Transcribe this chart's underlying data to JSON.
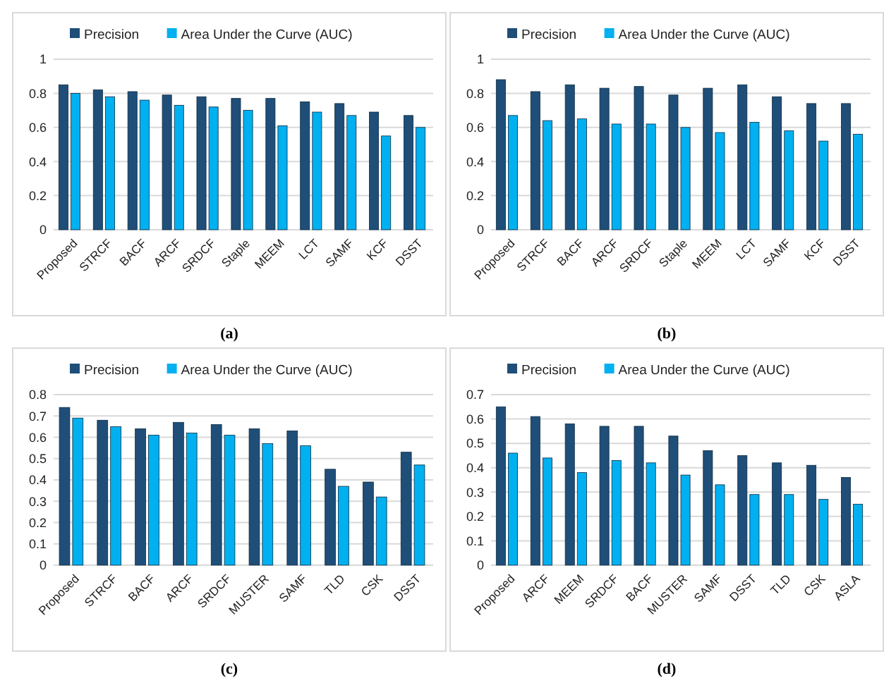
{
  "chart_data": [
    {
      "type": "bar",
      "title": "(a)",
      "categories": [
        "Proposed",
        "STRCF",
        "BACF",
        "ARCF",
        "SRDCF",
        "Staple",
        "MEEM",
        "LCT",
        "SAMF",
        "KCF",
        "DSST"
      ],
      "series": [
        {
          "name": "Precision",
          "color": "#1f4e79",
          "values": [
            0.85,
            0.82,
            0.81,
            0.79,
            0.78,
            0.77,
            0.77,
            0.75,
            0.74,
            0.69,
            0.67
          ]
        },
        {
          "name": "Area Under the Curve (AUC)",
          "color": "#00b0f0",
          "values": [
            0.8,
            0.78,
            0.76,
            0.73,
            0.72,
            0.7,
            0.61,
            0.69,
            0.67,
            0.55,
            0.6
          ]
        }
      ],
      "ylim": [
        0,
        1
      ],
      "yticks": [
        0,
        0.2,
        0.4,
        0.6,
        0.8,
        1
      ],
      "grid": "y",
      "legend": "top"
    },
    {
      "type": "bar",
      "title": "(b)",
      "categories": [
        "Proposed",
        "STRCF",
        "BACF",
        "ARCF",
        "SRDCF",
        "Staple",
        "MEEM",
        "LCT",
        "SAMF",
        "KCF",
        "DSST"
      ],
      "series": [
        {
          "name": "Precision",
          "color": "#1f4e79",
          "values": [
            0.88,
            0.81,
            0.85,
            0.83,
            0.84,
            0.79,
            0.83,
            0.85,
            0.78,
            0.74,
            0.74
          ]
        },
        {
          "name": "Area Under the Curve (AUC)",
          "color": "#00b0f0",
          "values": [
            0.67,
            0.64,
            0.65,
            0.62,
            0.62,
            0.6,
            0.57,
            0.63,
            0.58,
            0.52,
            0.56
          ]
        }
      ],
      "ylim": [
        0,
        1
      ],
      "yticks": [
        0,
        0.2,
        0.4,
        0.6,
        0.8,
        1
      ],
      "grid": "y",
      "legend": "top"
    },
    {
      "type": "bar",
      "title": "(c)",
      "categories": [
        "Proposed",
        "STRCF",
        "BACF",
        "ARCF",
        "SRDCF",
        "MUSTER",
        "SAMF",
        "TLD",
        "CSK",
        "DSST"
      ],
      "series": [
        {
          "name": "Precision",
          "color": "#1f4e79",
          "values": [
            0.74,
            0.68,
            0.64,
            0.67,
            0.66,
            0.64,
            0.63,
            0.45,
            0.39,
            0.53
          ]
        },
        {
          "name": "Area Under the Curve (AUC)",
          "color": "#00b0f0",
          "values": [
            0.69,
            0.65,
            0.61,
            0.62,
            0.61,
            0.57,
            0.56,
            0.37,
            0.32,
            0.47
          ]
        }
      ],
      "ylim": [
        0,
        0.8
      ],
      "yticks": [
        0,
        0.1,
        0.2,
        0.3,
        0.4,
        0.5,
        0.6,
        0.7,
        0.8
      ],
      "grid": "y",
      "legend": "top"
    },
    {
      "type": "bar",
      "title": "(d)",
      "categories": [
        "Proposed",
        "ARCF",
        "MEEM",
        "SRDCF",
        "BACF",
        "MUSTER",
        "SAMF",
        "DSST",
        "TLD",
        "CSK",
        "ASLA"
      ],
      "series": [
        {
          "name": "Precision",
          "color": "#1f4e79",
          "values": [
            0.65,
            0.61,
            0.58,
            0.57,
            0.57,
            0.53,
            0.47,
            0.45,
            0.42,
            0.41,
            0.36
          ]
        },
        {
          "name": "Area Under the Curve (AUC)",
          "color": "#00b0f0",
          "values": [
            0.46,
            0.44,
            0.38,
            0.43,
            0.42,
            0.37,
            0.33,
            0.29,
            0.29,
            0.27,
            0.25
          ]
        }
      ],
      "ylim": [
        0,
        0.7
      ],
      "yticks": [
        0,
        0.1,
        0.2,
        0.3,
        0.4,
        0.5,
        0.6,
        0.7
      ],
      "grid": "y",
      "legend": "top"
    }
  ]
}
